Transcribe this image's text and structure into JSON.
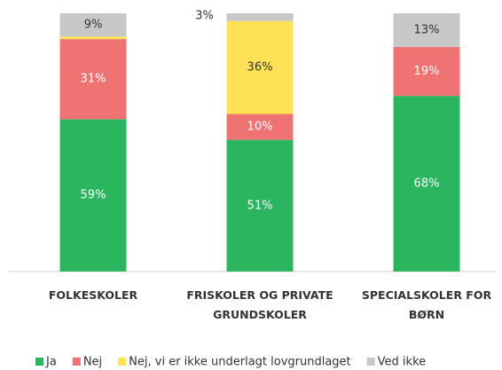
{
  "chart_data": {
    "type": "stacked-bar",
    "categories": [
      "FOLKESKOLER",
      "FRISKOLER OG PRIVATE GRUNDSKOLER",
      "SPECIALSKOLER FOR BØRN"
    ],
    "ylim": [
      0,
      100
    ],
    "series": [
      {
        "name": "Ja",
        "color": "#2bb55f",
        "values": [
          59,
          51,
          68
        ],
        "value_labels": [
          "59%",
          "51%",
          "68%"
        ]
      },
      {
        "name": "Nej",
        "color": "#f07373",
        "values": [
          31,
          10,
          19
        ],
        "value_labels": [
          "31%",
          "10%",
          "19%"
        ]
      },
      {
        "name": "Nej, vi er ikke underlagt lovgrundlaget",
        "color": "#ffe156",
        "values": [
          1,
          36,
          0
        ],
        "value_labels": [
          null,
          "36%",
          null
        ]
      },
      {
        "name": "Ved ikke",
        "color": "#c8c8c8",
        "values": [
          9,
          3,
          13
        ],
        "value_labels": [
          "9%",
          "3%",
          "13%"
        ]
      }
    ]
  }
}
